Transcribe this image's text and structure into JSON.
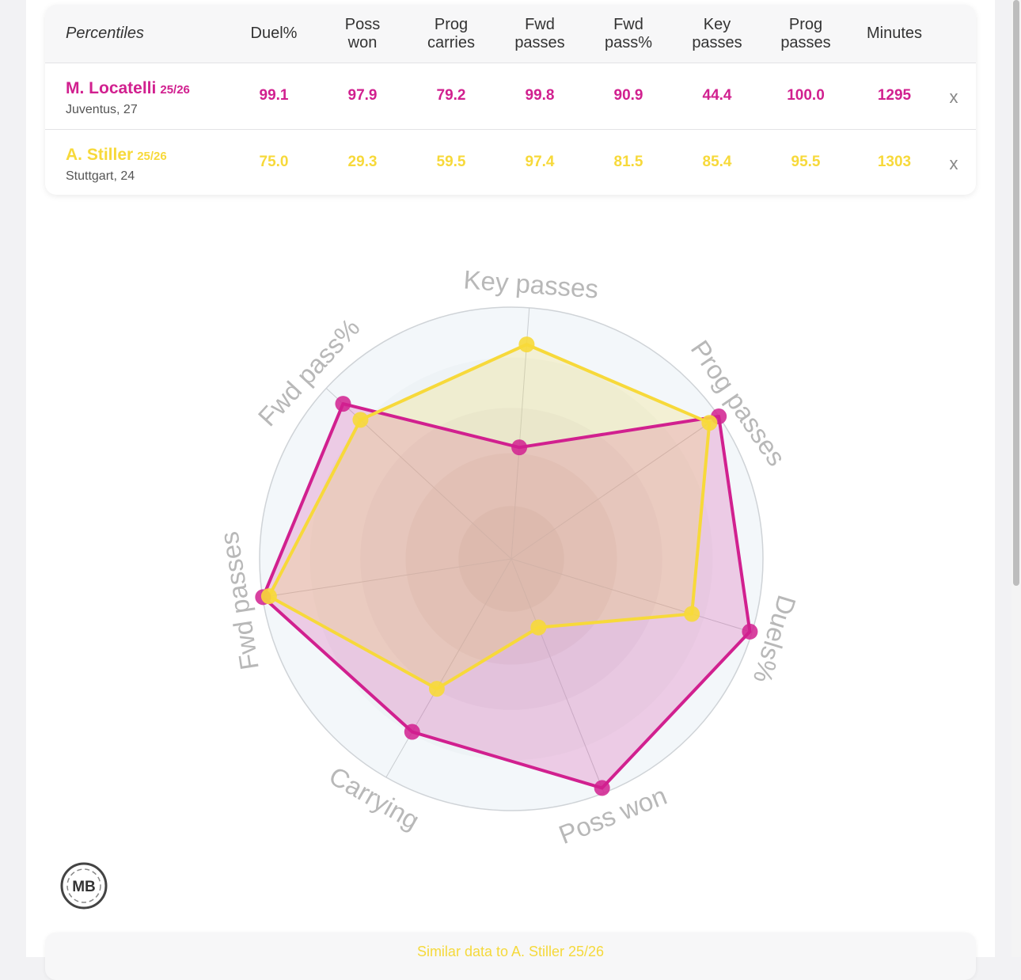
{
  "table": {
    "header_first": "Percentiles",
    "columns": [
      "Duel%",
      "Poss\nwon",
      "Prog\ncarries",
      "Fwd\npasses",
      "Fwd\npass%",
      "Key\npasses",
      "Prog\npasses",
      "Minutes"
    ],
    "rows": [
      {
        "name": "M. Locatelli",
        "season": "25/26",
        "sub": "Juventus, 27",
        "color": "#d1208f",
        "values": [
          "99.1",
          "97.9",
          "79.2",
          "99.8",
          "90.9",
          "44.4",
          "100.0",
          "1295"
        ],
        "remove": "x"
      },
      {
        "name": "A. Stiller",
        "season": "25/26",
        "sub": "Stuttgart, 24",
        "color": "#f7d93a",
        "values": [
          "75.0",
          "29.3",
          "59.5",
          "97.4",
          "81.5",
          "85.4",
          "95.5",
          "1303"
        ],
        "remove": "x"
      }
    ]
  },
  "chart_data": {
    "type": "radar",
    "axes": [
      "Key passes",
      "Prog passes",
      "Duels%",
      "Poss won",
      "Carrying",
      "Fwd passes",
      "Fwd pass%"
    ],
    "range": [
      0,
      100
    ],
    "series": [
      {
        "name": "M. Locatelli 25/26",
        "color": "#d1208f",
        "values": [
          44.4,
          100.0,
          99.1,
          97.9,
          79.2,
          99.8,
          90.9
        ]
      },
      {
        "name": "A. Stiller 25/26",
        "color": "#f7d93a",
        "values": [
          85.4,
          95.5,
          75.0,
          29.3,
          59.5,
          97.4,
          81.5
        ]
      }
    ]
  },
  "logo": {
    "text": "MB",
    "icon": "mb-logo-icon"
  },
  "similar": {
    "title": "Similar data to A. Stiller 25/26"
  }
}
